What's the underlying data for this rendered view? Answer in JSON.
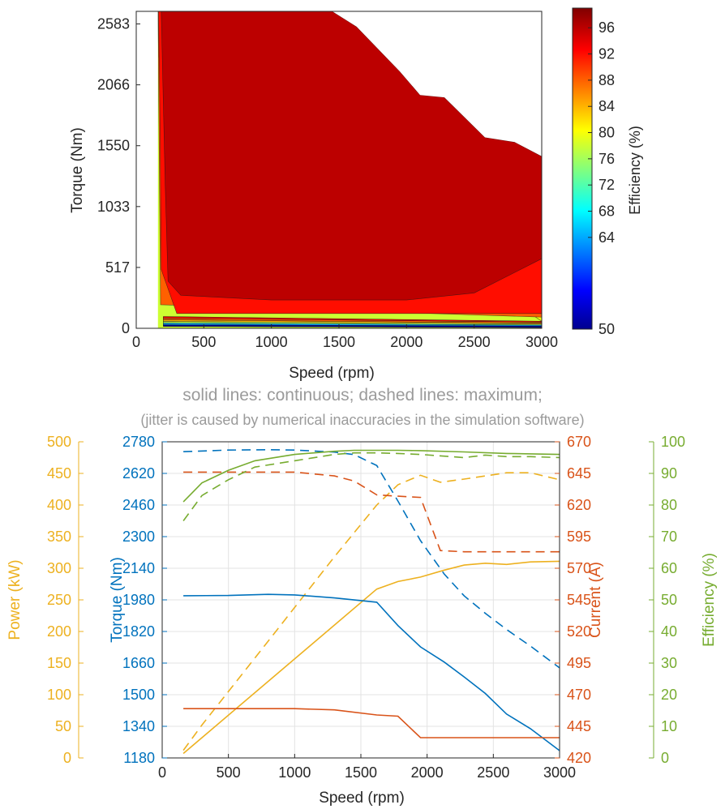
{
  "chart_data": [
    {
      "type": "heatmap",
      "title": "",
      "xlabel": "Speed (rpm)",
      "ylabel": "Torque (Nm)",
      "xlim": [
        0,
        3000
      ],
      "ylim": [
        0,
        2690
      ],
      "x_ticks": [
        "0",
        "500",
        "1000",
        "1500",
        "2000",
        "2500",
        "3000"
      ],
      "y_ticks": [
        "0",
        "517",
        "1033",
        "1550",
        "2066",
        "2583"
      ],
      "colorbar": {
        "label": "Efficiency (%)",
        "range": [
          50,
          99
        ],
        "ticks": [
          "50",
          "64",
          "68",
          "72",
          "76",
          "80",
          "84",
          "88",
          "92",
          "96"
        ],
        "colormap": "jet"
      },
      "grid": false,
      "speed_rpm": [
        160,
        500,
        1000,
        1450,
        1630,
        1950,
        2100,
        2280,
        2580,
        2800,
        3000
      ],
      "max_torque_nm": [
        2690,
        2690,
        2690,
        2690,
        2560,
        2180,
        1980,
        1960,
        1620,
        1580,
        1460
      ],
      "efficiency_levels": [
        {
          "efficiency_pct": 96,
          "left_edge_torque_nm": [
            [
              185,
              2690
            ],
            [
              215,
              1200
            ],
            [
              235,
              400
            ],
            [
              330,
              280
            ],
            [
              1000,
              240
            ],
            [
              2000,
              240
            ],
            [
              2500,
              300
            ],
            [
              3000,
              590
            ]
          ]
        },
        {
          "efficiency_pct": 92,
          "left_edge_torque_nm": [
            [
              165,
              2690
            ],
            [
              175,
              1800
            ],
            [
              185,
              500
            ],
            [
              300,
              125
            ],
            [
              3000,
              125
            ]
          ]
        },
        {
          "efficiency_pct": 88,
          "left_edge_torque_nm": [
            [
              162,
              2690
            ],
            [
              165,
              2100
            ],
            [
              180,
              200
            ],
            [
              3000,
              95
            ]
          ]
        },
        {
          "efficiency_pct": 80,
          "left_edge_torque_nm": [
            [
              160,
              2690
            ],
            [
              165,
              2300
            ],
            [
              3000,
              60
            ]
          ]
        }
      ]
    },
    {
      "type": "line",
      "title": "solid lines: continuous; dashed lines: maximum;",
      "subtitle": "(jitter is caused by numerical inaccuracies in the simulation software)",
      "xlabel": "Speed (rpm)",
      "xlim": [
        0,
        3000
      ],
      "x_ticks": [
        "0",
        "500",
        "1000",
        "1500",
        "2000",
        "2500",
        "3000"
      ],
      "grid": true,
      "axes": [
        {
          "label": "Power (kW)",
          "side": "left-outer",
          "color": "#EDB120",
          "ylim": [
            0,
            500
          ],
          "ticks": [
            "0",
            "50",
            "100",
            "150",
            "200",
            "250",
            "300",
            "350",
            "400",
            "450",
            "500"
          ]
        },
        {
          "label": "Torque (Nm)",
          "side": "left-inner",
          "color": "#0072BD",
          "ylim": [
            1180,
            2780
          ],
          "ticks": [
            "1180",
            "1340",
            "1500",
            "1660",
            "1820",
            "1980",
            "2140",
            "2300",
            "2460",
            "2620",
            "2780"
          ]
        },
        {
          "label": "Current (A)",
          "side": "right-inner",
          "color": "#D95319",
          "ylim": [
            420,
            670
          ],
          "ticks": [
            "420",
            "445",
            "470",
            "495",
            "520",
            "545",
            "570",
            "595",
            "620",
            "645",
            "670"
          ]
        },
        {
          "label": "Efficiency (%)",
          "side": "right-outer",
          "color": "#77AC30",
          "ylim": [
            0,
            100
          ],
          "ticks": [
            "0",
            "10",
            "20",
            "30",
            "40",
            "50",
            "60",
            "70",
            "80",
            "90",
            "100"
          ]
        }
      ],
      "series": [
        {
          "axis": 0,
          "style": "solid",
          "color": "#EDB120",
          "x": [
            160,
            1620,
            1780,
            1950,
            2130,
            2280,
            2440,
            2600,
            2780,
            3000
          ],
          "values": [
            7,
            267,
            279,
            286,
            297,
            305,
            308,
            306,
            310,
            311
          ]
        },
        {
          "axis": 0,
          "style": "dashed",
          "color": "#EDB120",
          "x": [
            160,
            300,
            700,
            1000,
            1300,
            1620,
            1780,
            1950,
            2100,
            2280,
            2440,
            2600,
            2780,
            3000
          ],
          "values": [
            12,
            52,
            158,
            238,
            318,
            400,
            432,
            447,
            436,
            441,
            446,
            451,
            451,
            440
          ]
        },
        {
          "axis": 1,
          "style": "solid",
          "color": "#0072BD",
          "x": [
            160,
            500,
            800,
            1000,
            1300,
            1620,
            1780,
            1950,
            2130,
            2280,
            2440,
            2600,
            2780,
            3000
          ],
          "values": [
            2001,
            2002,
            2008,
            2005,
            1990,
            1968,
            1850,
            1742,
            1665,
            1590,
            1506,
            1402,
            1328,
            1217
          ]
        },
        {
          "axis": 1,
          "style": "dashed",
          "color": "#0072BD",
          "x": [
            160,
            500,
            800,
            1000,
            1300,
            1450,
            1620,
            1780,
            1950,
            2130,
            2280,
            2440,
            2600,
            2780,
            3000
          ],
          "values": [
            2730,
            2738,
            2740,
            2738,
            2728,
            2715,
            2660,
            2480,
            2280,
            2110,
            2000,
            1912,
            1830,
            1746,
            1636
          ]
        },
        {
          "axis": 2,
          "style": "solid",
          "color": "#D95319",
          "x": [
            160,
            500,
            1000,
            1300,
            1620,
            1780,
            1950,
            2130,
            2280,
            2440,
            2600,
            2780,
            3000
          ],
          "values": [
            459,
            459,
            459,
            458,
            454,
            453,
            436,
            436,
            436,
            436,
            436,
            436,
            436
          ]
        },
        {
          "axis": 2,
          "style": "dashed",
          "color": "#D95319",
          "x": [
            160,
            500,
            1000,
            1300,
            1450,
            1620,
            1780,
            1950,
            2100,
            2280,
            2440,
            2600,
            2780,
            3000
          ],
          "values": [
            646,
            646,
            646,
            643,
            639,
            628,
            627,
            626,
            584,
            583,
            583,
            583,
            583,
            583
          ]
        },
        {
          "axis": 3,
          "style": "solid",
          "color": "#77AC30",
          "x": [
            160,
            300,
            500,
            700,
            1000,
            1300,
            1450,
            1620,
            1780,
            1950,
            2280,
            2600,
            3000
          ],
          "values": [
            81,
            87,
            91,
            94,
            96,
            97,
            97.3,
            97.3,
            97.3,
            97.2,
            96.8,
            96.3,
            96
          ]
        },
        {
          "axis": 3,
          "style": "dashed",
          "color": "#77AC30",
          "x": [
            160,
            300,
            500,
            700,
            1000,
            1300,
            1450,
            1620,
            1780,
            1950,
            2280,
            2440,
            2600,
            2780,
            3000
          ],
          "values": [
            75,
            83,
            88,
            92,
            94,
            96,
            96.5,
            96.5,
            96.3,
            96,
            95,
            95.8,
            95.3,
            95.3,
            95
          ]
        }
      ]
    }
  ]
}
